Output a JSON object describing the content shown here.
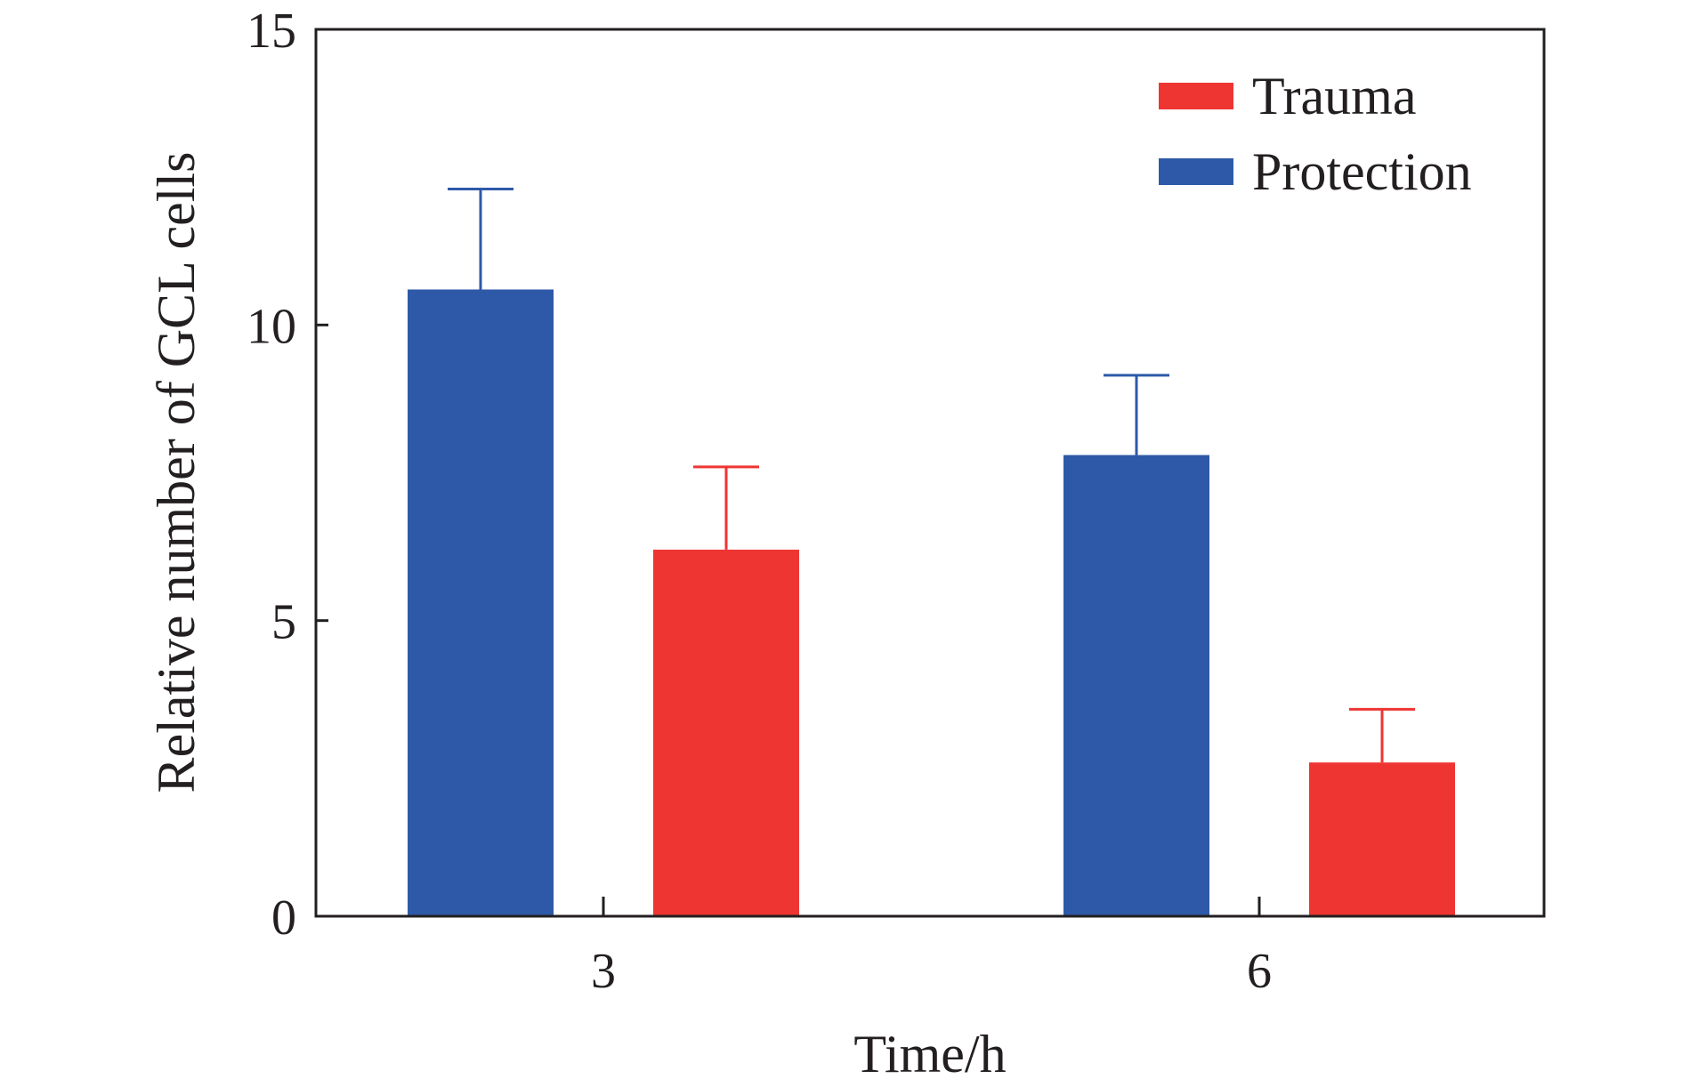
{
  "chart_data": {
    "type": "bar",
    "xlabel": "Time/h",
    "ylabel": "Relative number of GCL cells",
    "ylim": [
      0,
      15
    ],
    "yticks": [
      0,
      5,
      10,
      15
    ],
    "categories": [
      "3",
      "6"
    ],
    "series": [
      {
        "name": "Protection",
        "color": "#2e59a8",
        "values": [
          10.6,
          7.8
        ],
        "errors": [
          1.7,
          1.35
        ]
      },
      {
        "name": "Trauma",
        "color": "#ee3532",
        "values": [
          6.2,
          2.6
        ],
        "errors": [
          1.4,
          0.9
        ]
      }
    ],
    "legend": {
      "position": "top-right",
      "order": [
        "Trauma",
        "Protection"
      ]
    },
    "grid": false
  }
}
